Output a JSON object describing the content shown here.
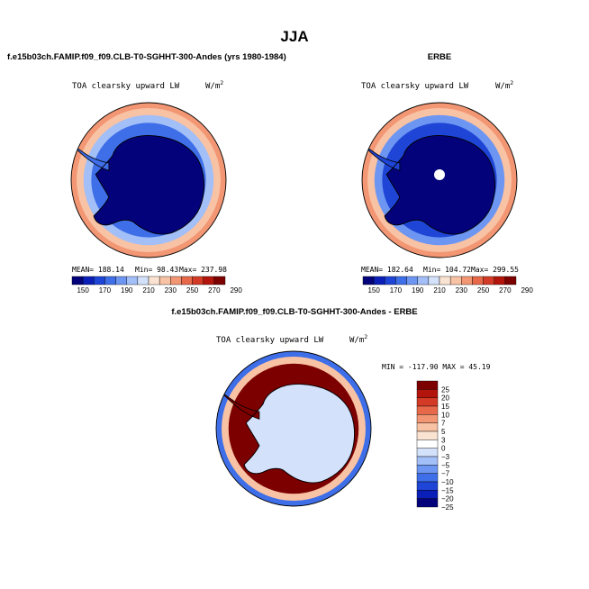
{
  "season_title": "JJA",
  "colors": {
    "seq": [
      "#03027a",
      "#0a1fb8",
      "#1f45d6",
      "#3e6ee8",
      "#6d96f2",
      "#a2bff7",
      "#d3e1fb",
      "#fbe3d2",
      "#f8c2a4",
      "#f29673",
      "#e8684a",
      "#d33b26",
      "#b3150c",
      "#7d0000"
    ],
    "diff": [
      "#03027a",
      "#0a1fb8",
      "#1f45d6",
      "#3e6ee8",
      "#6d96f2",
      "#a2bff7",
      "#d3e1fb",
      "#ffffff",
      "#fbe3d2",
      "#f8c2a4",
      "#f29673",
      "#e8684a",
      "#d33b26",
      "#b3150c",
      "#7d0000"
    ]
  },
  "chart_data": [
    {
      "type": "heatmap",
      "projection": "south-polar-stereographic",
      "title": "f.e15b03ch.FAMIP.f09_f09.CLB-T0-SGHHT-300-Andes (yrs 1980-1984)",
      "variable_label": "TOA clearsky upward LW",
      "units": "W/m",
      "units_exp": "2",
      "stats_text": {
        "mean": "MEAN= 188.14",
        "min": "Min= 98.43",
        "max": "Max= 237.98"
      },
      "stats": {
        "mean": 188.14,
        "min": 98.43,
        "max": 237.98
      },
      "colorbar": {
        "levels": [
          150,
          160,
          170,
          180,
          190,
          200,
          210,
          220,
          230,
          240,
          250,
          260,
          270,
          280,
          290
        ],
        "tick_labels": [
          "150",
          "170",
          "190",
          "210",
          "230",
          "250",
          "270",
          "290"
        ]
      },
      "field": {
        "interior": 147,
        "coast": 172,
        "ring_inner": 198,
        "ring_outer": 226,
        "edge": 230,
        "pole_hole": false
      }
    },
    {
      "type": "heatmap",
      "projection": "south-polar-stereographic",
      "title": "ERBE",
      "variable_label": "TOA clearsky upward LW",
      "units": "W/m",
      "units_exp": "2",
      "stats_text": {
        "mean": "MEAN= 182.64",
        "min": "Min= 104.72",
        "max": "Max= 299.55"
      },
      "stats": {
        "mean": 182.64,
        "min": 104.72,
        "max": 299.55
      },
      "colorbar": {
        "levels": [
          150,
          160,
          170,
          180,
          190,
          200,
          210,
          220,
          230,
          240,
          250,
          260,
          270,
          280,
          290
        ],
        "tick_labels": [
          "150",
          "170",
          "190",
          "210",
          "230",
          "250",
          "270",
          "290"
        ]
      },
      "field": {
        "interior": 145,
        "coast": 168,
        "ring_inner": 185,
        "ring_outer": 226,
        "edge": 232,
        "pole_hole": true
      }
    },
    {
      "type": "heatmap",
      "projection": "south-polar-stereographic",
      "title": "f.e15b03ch.FAMIP.f09_f09.CLB-T0-SGHHT-300-Andes - ERBE",
      "variable_label": "TOA clearsky upward LW",
      "units": "W/m",
      "units_exp": "2",
      "minmax_text": "MIN = -117.90 MAX =  45.19",
      "stats": {
        "min": -117.9,
        "max": 45.19
      },
      "colorbar": {
        "levels": [
          -25,
          -20,
          -15,
          -10,
          -7,
          -5,
          -3,
          0,
          3,
          5,
          7,
          10,
          15,
          20,
          25
        ],
        "tick_labels": [
          "25",
          "20",
          "15",
          "10",
          "7",
          "5",
          "3",
          "0",
          "−3",
          "−5",
          "−7",
          "−10",
          "−15",
          "−20",
          "−25"
        ]
      },
      "field": {
        "interior": -4,
        "coast": 20,
        "ring_inner": 22,
        "ring_outer": 4,
        "edge": -12,
        "pole_hole": false
      }
    }
  ]
}
